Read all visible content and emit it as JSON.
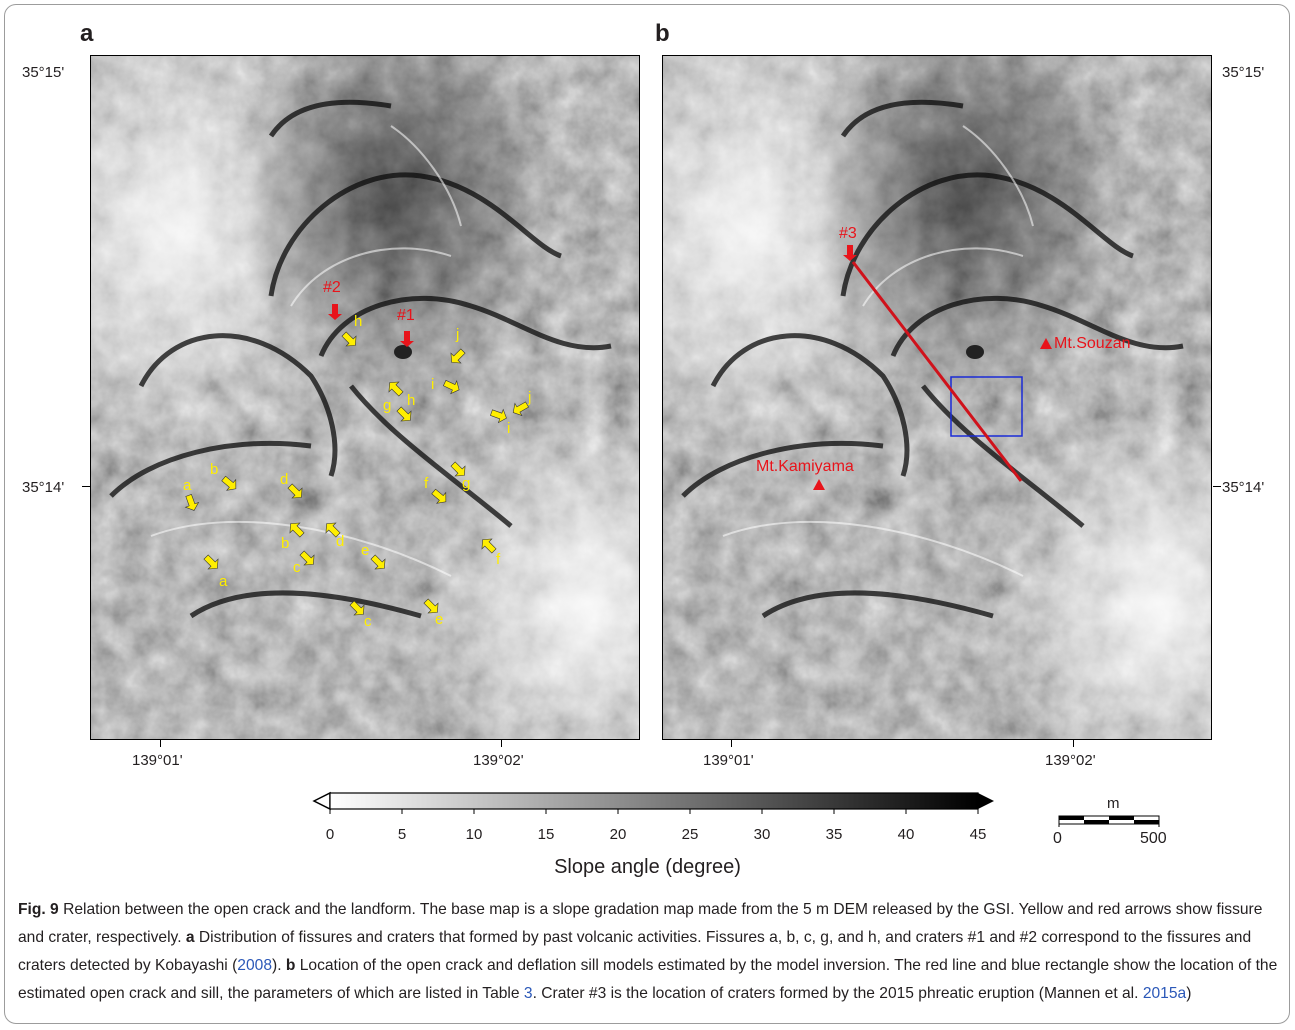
{
  "panels": [
    {
      "letter": "a",
      "lat_top": "35°15'",
      "lat_mid": "35°14'",
      "lon_left": "139°01'",
      "lon_right": "139°02'",
      "yellow_labels": [
        "h",
        "j",
        "i",
        "g",
        "h",
        "i",
        "j",
        "b",
        "a",
        "d",
        "f",
        "g",
        "b",
        "d",
        "c",
        "e",
        "f",
        "a",
        "c",
        "e"
      ],
      "red_labels": [
        "#2",
        "#1"
      ]
    },
    {
      "letter": "b",
      "lat_top": "35°15'",
      "lat_mid": "35°14'",
      "lon_left": "139°01'",
      "lon_right": "139°02'",
      "red_labels": [
        "#3",
        "Mt.Souzan",
        "Mt.Kamiyama"
      ]
    }
  ],
  "colorbar": {
    "title": "Slope angle (degree)",
    "ticks": [
      "0",
      "5",
      "10",
      "15",
      "20",
      "25",
      "30",
      "35",
      "40",
      "45"
    ],
    "min": 0,
    "max": 45
  },
  "scalebar": {
    "unit": "m",
    "start": "0",
    "end": "500"
  },
  "caption": {
    "label": "Fig. 9",
    "t1": "  Relation between the open crack and the landform. The base map is a slope gradation map made from the 5 m DEM released by the GSI. Yellow and red arrows show fissure and crater, respectively. ",
    "a": "a",
    "t2": " Distribution of fissures and craters that formed by past volcanic activities. Fissures a, b, c, g, and h, and craters #1 and #2 correspond to the fissures and craters detected by Kobayashi (",
    "ref1": "2008",
    "t3": "). ",
    "b": "b",
    "t4": " Location of the open crack and deflation sill models estimated by the model inversion. The red line and blue rectangle show the location of the estimated open crack and sill, the parameters of which are listed in Table ",
    "ref2": "3",
    "t5": ". Crater #3 is the location of craters formed by the 2015 phreatic eruption (Mannen et al. ",
    "ref3": "2015a",
    "t6": ")"
  },
  "colors": {
    "fissure_arrow": "#ffee00",
    "crater_arrow": "#e8141b",
    "open_crack_line": "#d0121b",
    "sill_rectangle": "#1a2bd6",
    "link": "#2b58b8"
  }
}
